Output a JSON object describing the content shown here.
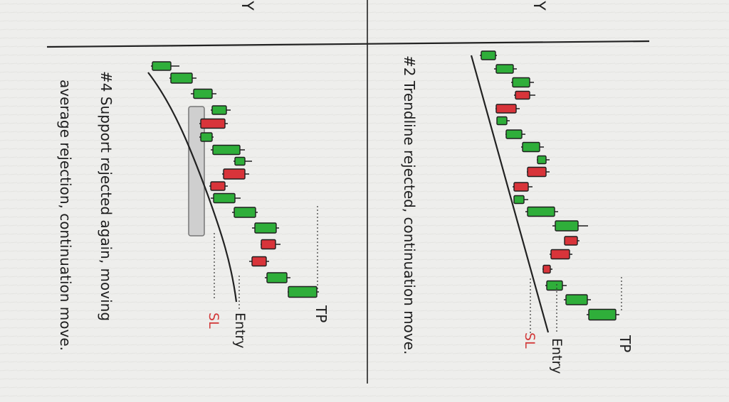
{
  "panels": [
    {
      "id": "support-ma-rejection",
      "caption_line1": "#4 Support rejected again, moving",
      "caption_line2": "average rejection, continuation move.",
      "labels": {
        "tp": "TP",
        "entry": "Entry",
        "sl": "SL"
      }
    },
    {
      "id": "trendline-rejection",
      "caption_line1": "#2 Trendline rejected, continuation move.",
      "labels": {
        "tp": "TP",
        "entry": "Entry",
        "sl": "SL"
      }
    }
  ],
  "corner_glyphs": {
    "left": "Y",
    "right": "Y"
  },
  "colors": {
    "bull": "#2fae3a",
    "bear": "#d8343a",
    "ink": "#1e1e1e",
    "sl_text": "#d23a3a",
    "paper": "#eeeeec"
  }
}
